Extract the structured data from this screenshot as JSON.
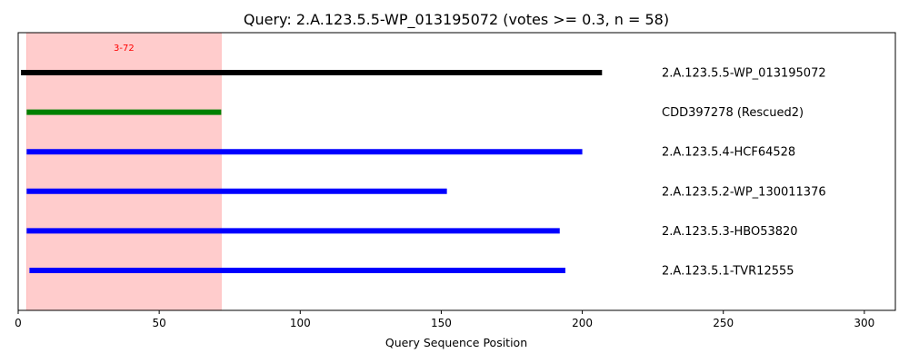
{
  "chart_data": {
    "type": "alignment_tracks",
    "title": "Query: 2.A.123.5.5-WP_013195072 (votes >= 0.3, n = 58)",
    "xlabel": "Query Sequence Position",
    "ylabel": "",
    "xlim": [
      0,
      311
    ],
    "x_ticks": [
      0,
      50,
      100,
      150,
      200,
      250,
      300
    ],
    "grid": false,
    "highlight_region": {
      "start": 3,
      "end": 72,
      "label": "3-72",
      "color": "#ff0000"
    },
    "tracks": [
      {
        "name": "2.A.123.5.5-WP_013195072",
        "start": 1,
        "end": 207,
        "color": "#000000"
      },
      {
        "name": "CDD397278 (Rescued2)",
        "start": 3,
        "end": 72,
        "color": "#008000"
      },
      {
        "name": "2.A.123.5.4-HCF64528",
        "start": 3,
        "end": 200,
        "color": "#0000ff"
      },
      {
        "name": "2.A.123.5.2-WP_130011376",
        "start": 3,
        "end": 152,
        "color": "#0000ff"
      },
      {
        "name": "2.A.123.5.3-HBO53820",
        "start": 3,
        "end": 192,
        "color": "#0000ff"
      },
      {
        "name": "2.A.123.5.1-TVR12555",
        "start": 4,
        "end": 194,
        "color": "#0000ff"
      }
    ]
  }
}
